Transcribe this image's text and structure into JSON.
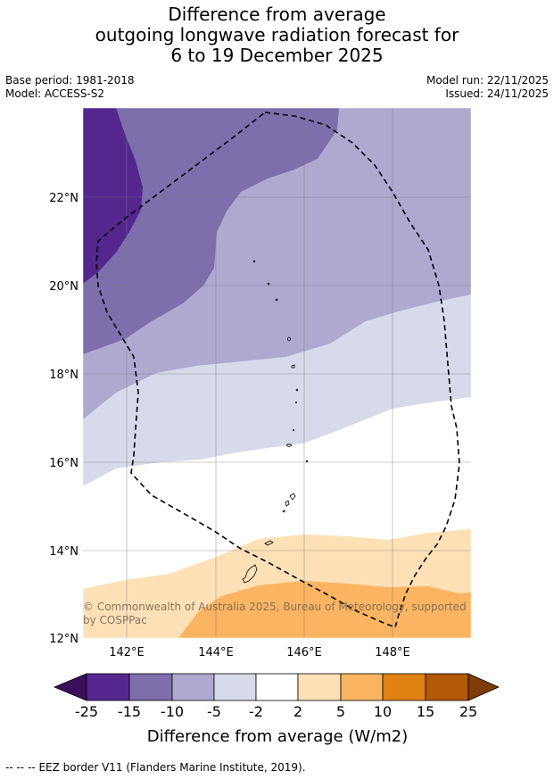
{
  "title": {
    "line1": "Difference from average",
    "line2": "outgoing longwave radiation forecast for",
    "line3": "6 to 19 December 2025"
  },
  "meta": {
    "base_period": "Base period: 1981-2018",
    "model": "Model: ACCESS-S2",
    "model_run": "Model run: 22/11/2025",
    "issued": "Issued: 24/11/2025"
  },
  "map": {
    "lat_labels": [
      "22°N",
      "20°N",
      "18°N",
      "16°N",
      "14°N",
      "12°N"
    ],
    "lon_labels": [
      "142°E",
      "144°E",
      "146°E",
      "148°E"
    ],
    "copyright": "© Commonwealth of Australia 2025, Bureau of Meteorology, supported by COSPPac"
  },
  "colorbar": {
    "ticks": [
      "-25",
      "-15",
      "-10",
      "-5",
      "-2",
      "2",
      "5",
      "10",
      "15",
      "25"
    ],
    "colors": {
      "under": "#3a0f5c",
      "c1": "#54278f",
      "c2": "#7d6fab",
      "c3": "#afa9d0",
      "c4": "#d8d9ea",
      "c5": "#ffffff",
      "c6": "#fde0b6",
      "c7": "#fbb461",
      "c8": "#e08214",
      "c9": "#b35806",
      "over": "#7f3b08"
    },
    "label": "Difference from average (W/m2)"
  },
  "footer": {
    "legend_symbol": "-- -- --",
    "legend_text": "EEZ border V11 (Flanders Marine Institute, 2019)."
  }
}
